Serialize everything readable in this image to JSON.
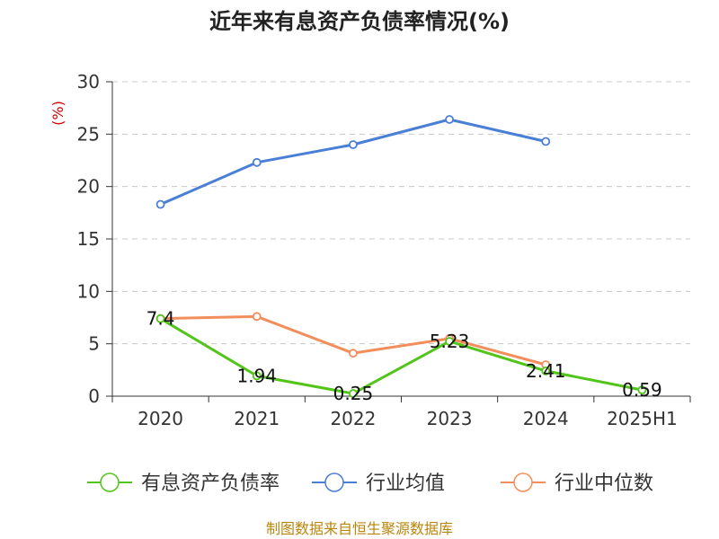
{
  "chart_data": {
    "type": "line",
    "title": "近年来有息资产负债率情况(%)",
    "ylabel": "(%)",
    "xlabel": "",
    "categories": [
      "2020",
      "2021",
      "2022",
      "2023",
      "2024",
      "2025H1"
    ],
    "ylim": [
      0,
      30
    ],
    "yticks": [
      0,
      5,
      10,
      15,
      20,
      25,
      30
    ],
    "grid": true,
    "legend_position": "bottom",
    "series": [
      {
        "name": "有息资产负债率",
        "color": "#52c41a",
        "values": [
          7.4,
          1.94,
          0.25,
          5.23,
          2.41,
          0.59
        ],
        "labels": [
          "7.4",
          "1.94",
          "0.25",
          "5.23",
          "2.41",
          "0.59"
        ]
      },
      {
        "name": "行业均值",
        "color": "#4a7fd6",
        "values": [
          18.3,
          22.3,
          24.0,
          26.4,
          24.3,
          null
        ]
      },
      {
        "name": "行业中位数",
        "color": "#f28e5c",
        "values": [
          7.4,
          7.6,
          4.1,
          5.5,
          3.0,
          null
        ]
      }
    ]
  },
  "source": "制图数据来自恒生聚源数据库"
}
